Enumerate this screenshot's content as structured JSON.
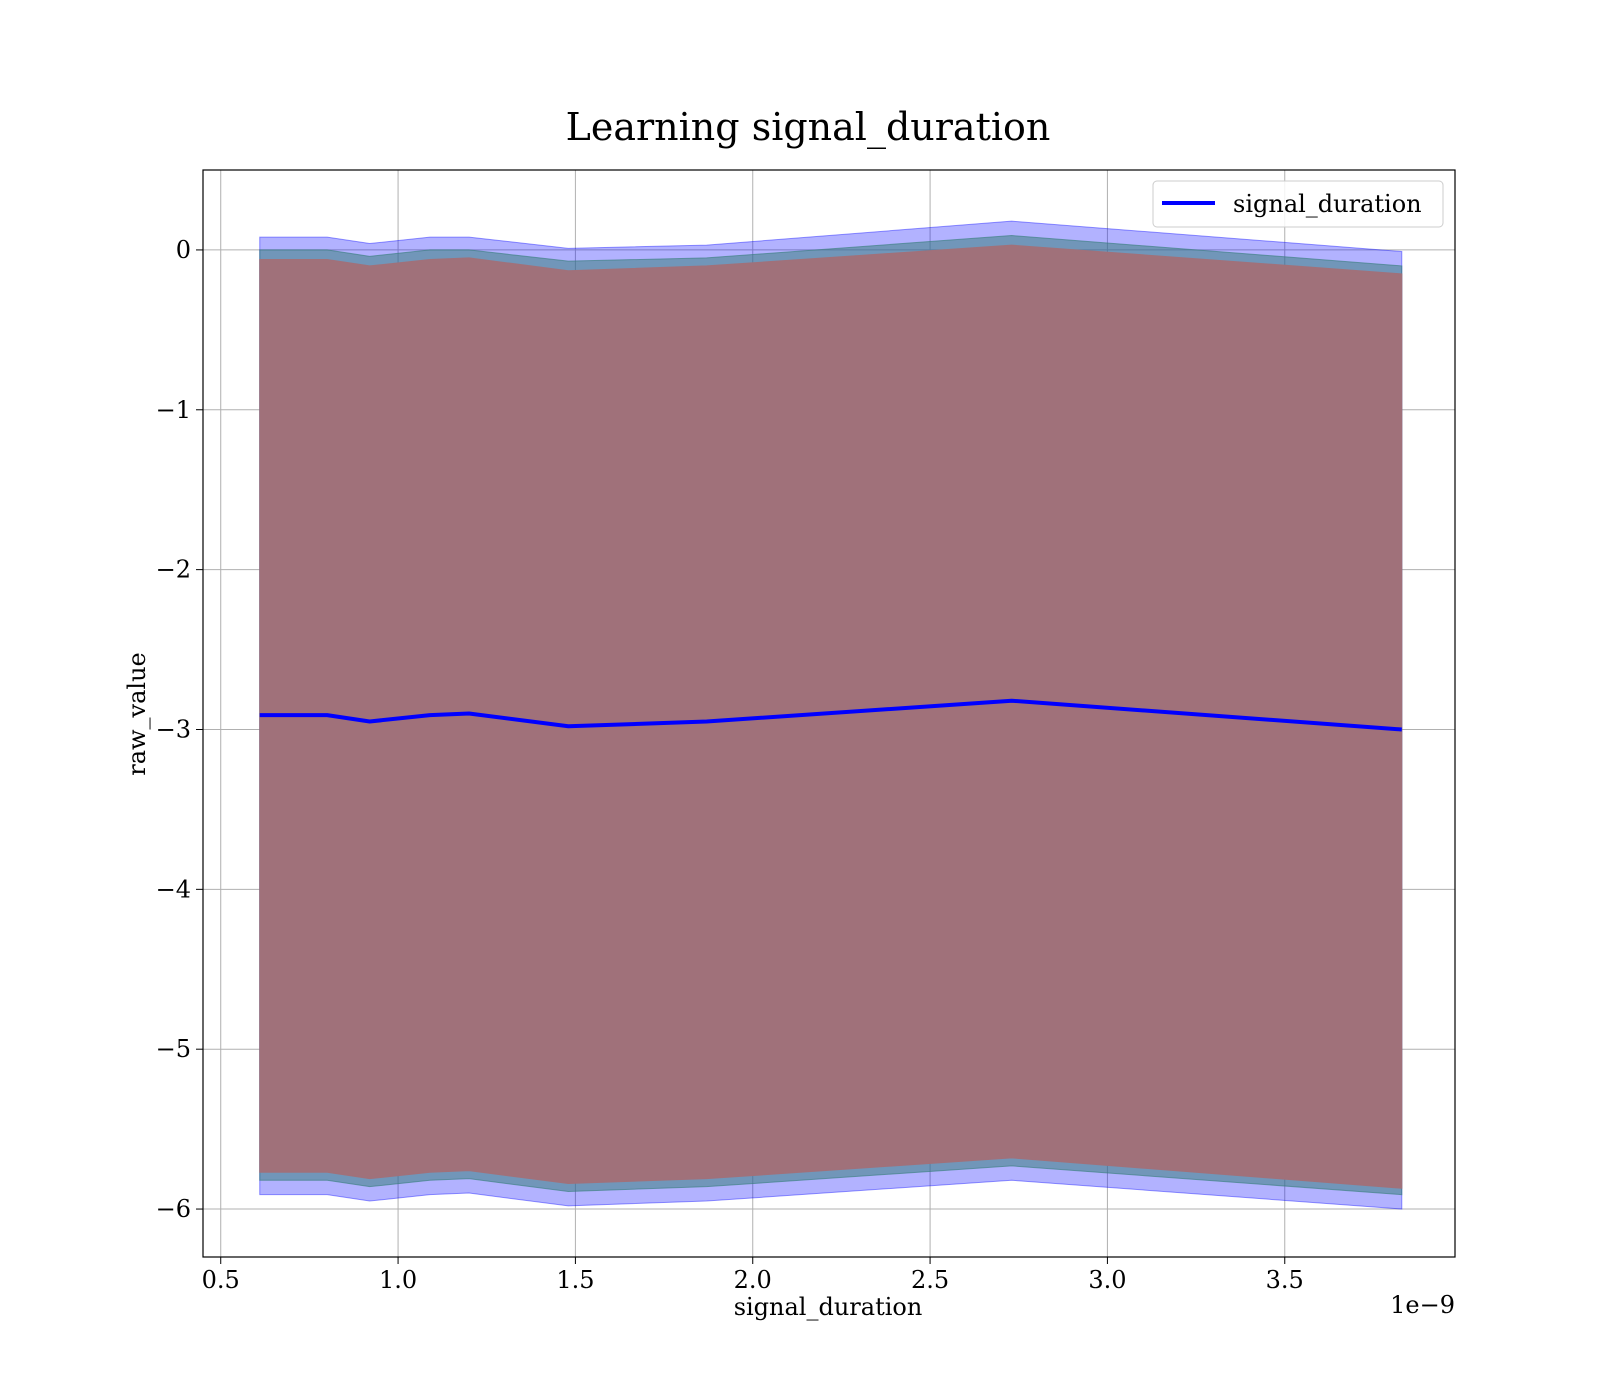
{
  "chart_data": {
    "type": "line",
    "title": "Learning signal_duration",
    "xlabel": "signal_duration",
    "ylabel": "raw_value",
    "x_offset_label": "1e−9",
    "xlim": [
      0.45,
      3.98
    ],
    "ylim": [
      -6.3,
      0.5
    ],
    "x_ticks": [
      0.5,
      1.0,
      1.5,
      2.0,
      2.5,
      3.0,
      3.5
    ],
    "x_tick_labels": [
      "0.5",
      "1.0",
      "1.5",
      "2.0",
      "2.5",
      "3.0",
      "3.5"
    ],
    "y_ticks": [
      0,
      -1,
      -2,
      -3,
      -4,
      -5,
      -6
    ],
    "y_tick_labels": [
      "0",
      "−1",
      "−2",
      "−3",
      "−4",
      "−5",
      "−6"
    ],
    "grid": true,
    "legend_position": "top-right",
    "legend": [
      "signal_duration"
    ],
    "x": [
      0.61,
      0.8,
      0.92,
      1.09,
      1.2,
      1.48,
      1.87,
      2.73,
      3.83
    ],
    "series": [
      {
        "name": "signal_duration",
        "color": "#0000ff",
        "values": [
          -2.91,
          -2.91,
          -2.95,
          -2.91,
          -2.9,
          -2.98,
          -2.95,
          -2.82,
          -3.0
        ]
      }
    ],
    "bands": [
      {
        "color": "#0000ff",
        "opacity": 0.3,
        "upper": [
          0.08,
          0.08,
          0.04,
          0.08,
          0.08,
          0.01,
          0.03,
          0.18,
          -0.01
        ],
        "lower": [
          -5.91,
          -5.91,
          -5.95,
          -5.91,
          -5.9,
          -5.98,
          -5.95,
          -5.82,
          -6.0
        ]
      },
      {
        "color": "#3c7f7f",
        "opacity": 0.55,
        "upper": [
          0.0,
          0.0,
          -0.04,
          0.0,
          0.0,
          -0.07,
          -0.05,
          0.09,
          -0.1
        ],
        "lower": [
          -5.82,
          -5.82,
          -5.86,
          -5.82,
          -5.81,
          -5.89,
          -5.86,
          -5.73,
          -5.91
        ]
      },
      {
        "color": "#a0717a",
        "opacity": 1.0,
        "upper": [
          -0.06,
          -0.06,
          -0.1,
          -0.06,
          -0.05,
          -0.13,
          -0.1,
          0.03,
          -0.15
        ],
        "lower": [
          -5.77,
          -5.77,
          -5.81,
          -5.77,
          -5.76,
          -5.84,
          -5.81,
          -5.68,
          -5.87
        ]
      }
    ]
  }
}
